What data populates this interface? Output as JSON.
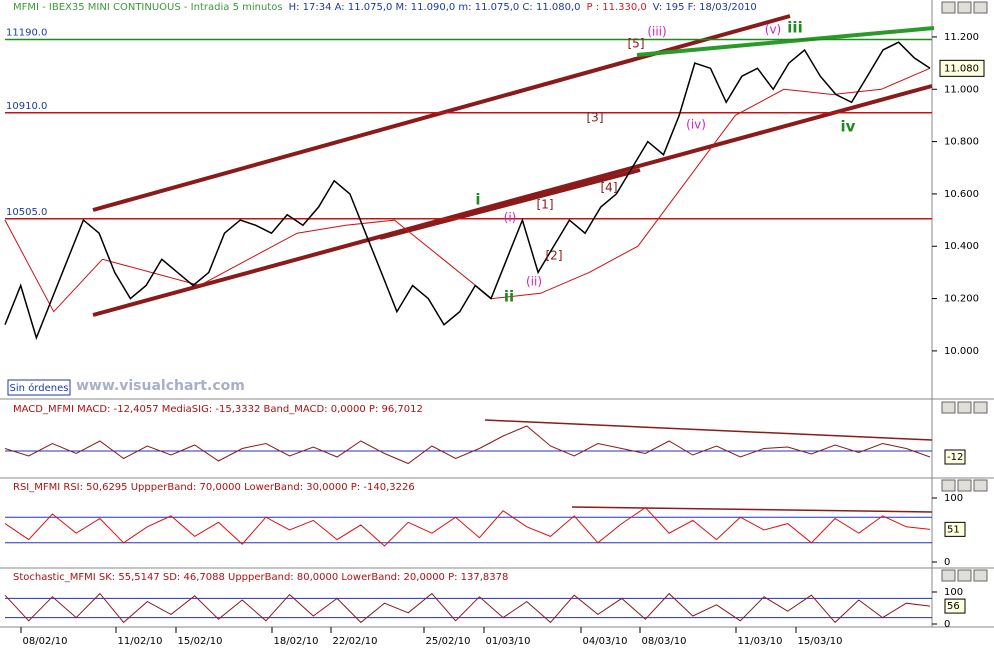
{
  "main": {
    "header": [
      {
        "text": "MFMI - IBEX35 MINI CONTINUOUS - Intradia 5 minutos",
        "color": "#3a9a3a"
      },
      {
        "text": "H: 17:34  A: 11.075,0  M: 11.090,0  m: 11.075,0  C: 11.080,0",
        "color": "#1a3aa8"
      },
      {
        "text": "P : 11.330,0",
        "color": "#d02020"
      },
      {
        "text": "V: 195  F: 18/03/2010",
        "color": "#1a3aa8"
      }
    ],
    "ylim": [
      9820,
      11280
    ],
    "yticks": [
      {
        "value": 10000,
        "label": "10.000"
      },
      {
        "value": 10200,
        "label": "10.200"
      },
      {
        "value": 10400,
        "label": "10.400"
      },
      {
        "value": 10600,
        "label": "10.600"
      },
      {
        "value": 10800,
        "label": "10.800"
      },
      {
        "value": 11000,
        "label": "11.000"
      },
      {
        "value": 11200,
        "label": "11.200"
      }
    ],
    "levels": [
      {
        "value": 11190,
        "label": "11190.0",
        "color": "#1e8a1e"
      },
      {
        "value": 10910,
        "label": "10910.0",
        "color": "#cc1010"
      },
      {
        "value": 10505,
        "label": "10505.0",
        "color": "#cc1010"
      }
    ],
    "last": {
      "value": 11080,
      "label": "11.080"
    },
    "price": [
      10100,
      10250,
      10050,
      10200,
      10350,
      10500,
      10450,
      10300,
      10200,
      10250,
      10350,
      10300,
      10250,
      10300,
      10450,
      10500,
      10480,
      10450,
      10520,
      10480,
      10550,
      10650,
      10600,
      10450,
      10300,
      10150,
      10250,
      10200,
      10100,
      10150,
      10250,
      10200,
      10350,
      10500,
      10300,
      10400,
      10500,
      10450,
      10550,
      10600,
      10700,
      10800,
      10750,
      10900,
      11100,
      11080,
      10950,
      11050,
      11080,
      11000,
      11100,
      11150,
      11050,
      10980,
      10950,
      11050,
      11150,
      11180,
      11120,
      11080
    ],
    "price_color": "#000000",
    "average": [
      10500,
      10150,
      10350,
      10300,
      10250,
      10350,
      10450,
      10480,
      10500,
      10350,
      10200,
      10220,
      10300,
      10400,
      10650,
      10900,
      11000,
      10980,
      11000,
      11080
    ],
    "average_color": "#d01010",
    "annotations": [
      {
        "text": "[5]",
        "color": "#8b1a1a"
      },
      {
        "text": "(iii)",
        "color": "#d020d0"
      },
      {
        "text": "(v)",
        "color": "#d020d0"
      },
      {
        "text": "iii",
        "color": "#1e8a1e"
      },
      {
        "text": "[3]",
        "color": "#8b1a1a"
      },
      {
        "text": "(iv)",
        "color": "#d020d0"
      },
      {
        "text": "iv",
        "color": "#1e8a1e"
      },
      {
        "text": "[4]",
        "color": "#8b1a1a"
      },
      {
        "text": "i",
        "color": "#1e8a1e"
      },
      {
        "text": "(i)",
        "color": "#d020d0"
      },
      {
        "text": "[1]",
        "color": "#8b1a1a"
      },
      {
        "text": "[2]",
        "color": "#8b1a1a"
      },
      {
        "text": "ii",
        "color": "#1e8a1e"
      },
      {
        "text": "(ii)",
        "color": "#d020d0"
      }
    ],
    "status": "Sin órdenes",
    "watermark": "www.visualchart.com"
  },
  "macd": {
    "header": "MACD_MFMI  MACD: -12,4057  MediaSIG: -15,3332  Band_MACD: 0,0000  P: 96,7012",
    "ylim": [
      -50,
      70
    ],
    "zero": 0,
    "last": {
      "value": -12,
      "label": "-12"
    },
    "values": [
      5,
      -10,
      15,
      -5,
      20,
      -15,
      10,
      -8,
      12,
      -20,
      5,
      15,
      -10,
      8,
      -12,
      20,
      -5,
      -25,
      10,
      -15,
      5,
      30,
      50,
      10,
      -10,
      15,
      5,
      -5,
      20,
      -8,
      10,
      -12,
      5,
      8,
      -6,
      12,
      -3,
      15,
      5,
      -12
    ]
  },
  "rsi": {
    "header": "RSI_MFMI  RSI: 50,6295  UppperBand: 70,0000  LowerBand: 30,0000  P: -140,3226",
    "ylim": [
      0,
      100
    ],
    "yticks": [
      0,
      100
    ],
    "bands": [
      70,
      30
    ],
    "last": 51,
    "values": [
      60,
      35,
      75,
      45,
      68,
      30,
      55,
      72,
      40,
      62,
      28,
      70,
      50,
      65,
      35,
      58,
      25,
      62,
      45,
      70,
      38,
      80,
      55,
      40,
      72,
      30,
      60,
      85,
      45,
      65,
      35,
      70,
      50,
      60,
      30,
      68,
      45,
      72,
      55,
      51
    ]
  },
  "stoch": {
    "header": "Stochastic_MFMI  SK: 55,5147  SD: 46,7088  UppperBand: 80,0000  LowerBand: 20,0000  P: 137,8378",
    "ylim": [
      0,
      100
    ],
    "yticks": [
      0,
      100
    ],
    "bands": [
      80,
      20
    ],
    "last": 56,
    "values": [
      90,
      10,
      85,
      20,
      95,
      5,
      70,
      30,
      88,
      15,
      75,
      10,
      92,
      25,
      80,
      5,
      65,
      35,
      95,
      10,
      85,
      20,
      70,
      5,
      90,
      30,
      80,
      15,
      95,
      25,
      60,
      10,
      85,
      40,
      90,
      5,
      75,
      20,
      65,
      56
    ]
  },
  "dates": [
    "08/02/10",
    "11/02/10",
    "15/02/10",
    "18/02/10",
    "22/02/10",
    "25/02/10",
    "01/03/10",
    "04/03/10",
    "08/03/10",
    "11/03/10",
    "15/03/10"
  ]
}
